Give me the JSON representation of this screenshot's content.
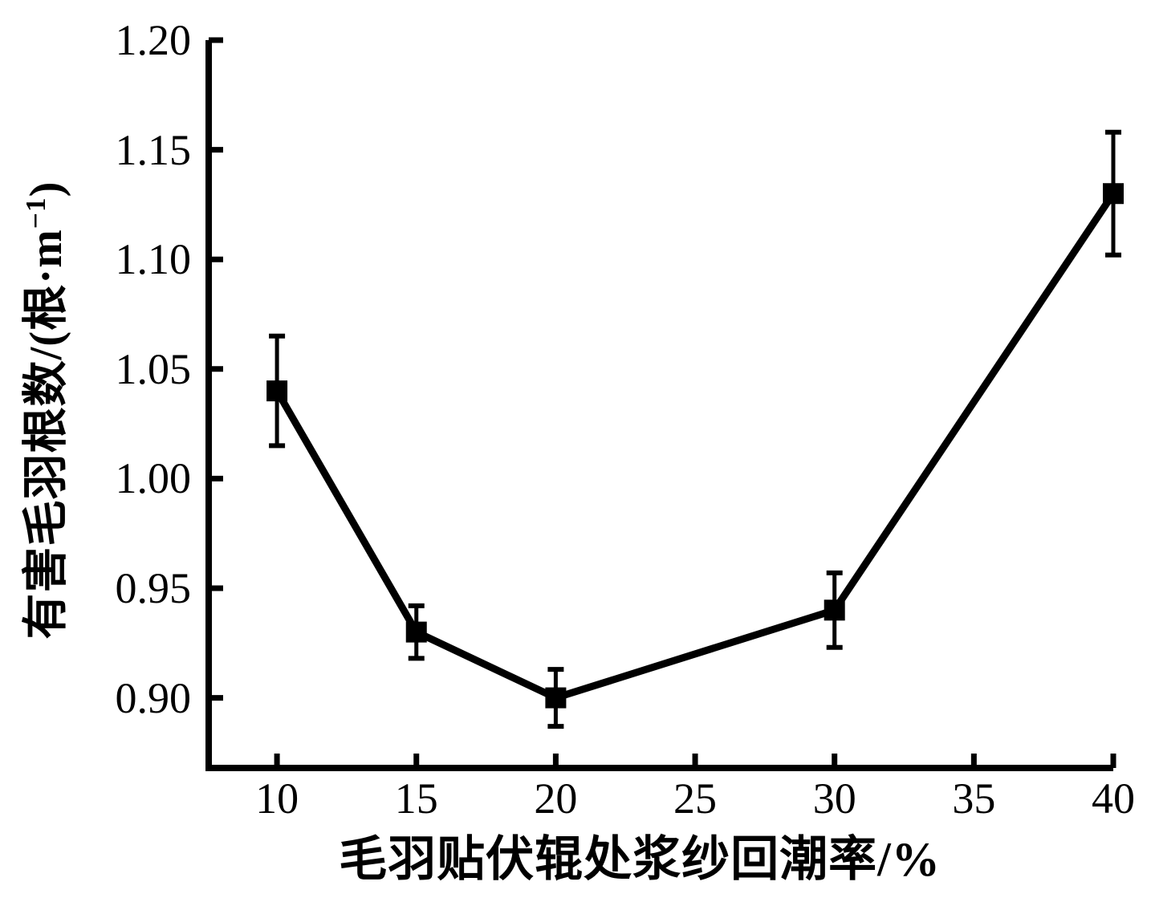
{
  "figure": {
    "background_color": "#ffffff",
    "foreground_color": "#000000"
  },
  "chart_data": {
    "type": "line",
    "title": "",
    "xlabel": "毛羽贴伏辊处浆纱回潮率/%",
    "ylabel": "有害毛羽根数/(根·m⁻¹)",
    "ylabel_parts": {
      "prefix": "有害毛羽根数/(根·m",
      "sup": "−1",
      "suffix": ")"
    },
    "x": [
      10,
      15,
      20,
      30,
      40
    ],
    "y": [
      1.04,
      0.93,
      0.9,
      0.94,
      1.13
    ],
    "y_err": [
      0.025,
      0.012,
      0.013,
      0.017,
      0.028
    ],
    "x_ticks": [
      10,
      15,
      20,
      25,
      30,
      35,
      40
    ],
    "x_tick_labels": [
      "10",
      "15",
      "20",
      "25",
      "30",
      "35",
      "40"
    ],
    "y_ticks": [
      0.9,
      0.95,
      1.0,
      1.05,
      1.1,
      1.15,
      1.2
    ],
    "y_tick_labels": [
      "0.90",
      "0.95",
      "1.00",
      "1.05",
      "1.10",
      "1.15",
      "1.20"
    ],
    "xlim": [
      7.55,
      40
    ],
    "ylim": [
      0.868,
      1.2
    ],
    "grid": false,
    "legend": null,
    "marker": "filled-square",
    "line_color": "#000000",
    "marker_color": "#000000",
    "axis_color": "#000000"
  }
}
